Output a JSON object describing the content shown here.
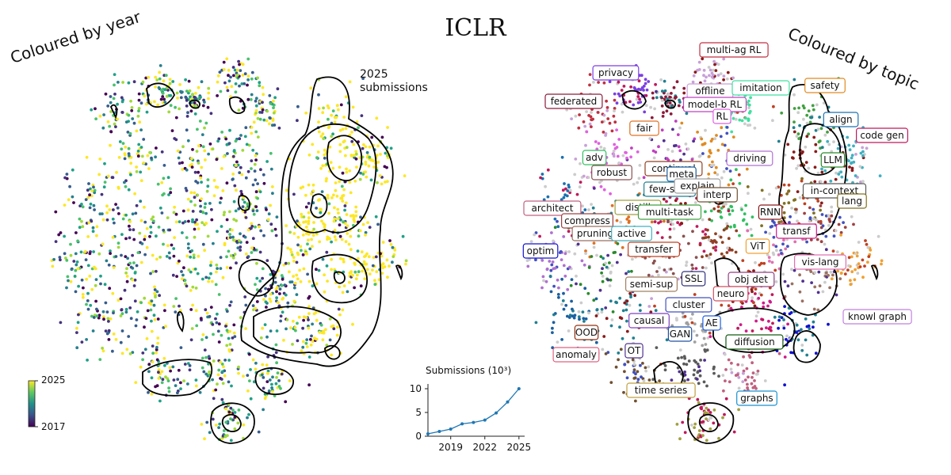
{
  "page": {
    "title": "ICLR",
    "left_title": "Coloured by year",
    "right_title": "Coloured by topic",
    "annotation_line1": "2025",
    "annotation_line2": "submissions"
  },
  "colorbar": {
    "label_top": "2025",
    "label_bottom": "2017",
    "colors": [
      "#440154",
      "#3b528b",
      "#21918c",
      "#5ec962",
      "#fde725"
    ]
  },
  "topics": [
    {
      "label": "multi-ag RL",
      "color": "#c03040"
    },
    {
      "label": "privacy",
      "color": "#7b3fe0"
    },
    {
      "label": "federated",
      "color": "#8b1a3a"
    },
    {
      "label": "offline",
      "color": "#c8a0d8"
    },
    {
      "label": "imitation",
      "color": "#40e0a0"
    },
    {
      "label": "safety",
      "color": "#e08a20"
    },
    {
      "label": "model-b RL",
      "color": "#c040c0"
    },
    {
      "label": "RL",
      "color": "#e060e0"
    },
    {
      "label": "align",
      "color": "#1a70b0"
    },
    {
      "label": "fair",
      "color": "#e07020"
    },
    {
      "label": "code gen",
      "color": "#c0185a"
    },
    {
      "label": "adv",
      "color": "#30c060"
    },
    {
      "label": "driving",
      "color": "#b070d0"
    },
    {
      "label": "LLM",
      "color": "#2a8a2a"
    },
    {
      "label": "robust",
      "color": "#8a5050"
    },
    {
      "label": "continual",
      "color": "#904020"
    },
    {
      "label": "meta",
      "color": "#1a5fa0"
    },
    {
      "label": "few-shot",
      "color": "#208090"
    },
    {
      "label": "explain",
      "color": "#a0a0a0"
    },
    {
      "label": "interp",
      "color": "#705030"
    },
    {
      "label": "in-context",
      "color": "#5a5a5a"
    },
    {
      "label": "architect",
      "color": "#c06080"
    },
    {
      "label": "distill",
      "color": "#a0a040"
    },
    {
      "label": "multi-task",
      "color": "#40a040"
    },
    {
      "label": "RNN",
      "color": "#8a1a1a"
    },
    {
      "label": "lang",
      "color": "#807020"
    },
    {
      "label": "compress",
      "color": "#a04040"
    },
    {
      "label": "pruning",
      "color": "#9a7060"
    },
    {
      "label": "active",
      "color": "#40b0c0"
    },
    {
      "label": "transf",
      "color": "#d01a8a"
    },
    {
      "label": "optim",
      "color": "#1010d0"
    },
    {
      "label": "transfer",
      "color": "#c04020"
    },
    {
      "label": "ViT",
      "color": "#f0a030"
    },
    {
      "label": "vis-lang",
      "color": "#e070b0"
    },
    {
      "label": "semi-sup",
      "color": "#a08060"
    },
    {
      "label": "SSL",
      "color": "#303080"
    },
    {
      "label": "obj det",
      "color": "#904080"
    },
    {
      "label": "neuro",
      "color": "#d05060"
    },
    {
      "label": "cluster",
      "color": "#4050c0"
    },
    {
      "label": "causal",
      "color": "#8040c0"
    },
    {
      "label": "AE",
      "color": "#2060e0"
    },
    {
      "label": "knowl graph",
      "color": "#c080e0"
    },
    {
      "label": "OOD",
      "color": "#903010"
    },
    {
      "label": "GAN",
      "color": "#2050a0"
    },
    {
      "label": "diffusion",
      "color": "#105a10"
    },
    {
      "label": "OT",
      "color": "#503090"
    },
    {
      "label": "anomaly",
      "color": "#e06080"
    },
    {
      "label": "time series",
      "color": "#c0a040"
    },
    {
      "label": "graphs",
      "color": "#1890d0"
    }
  ],
  "chart_data": [
    {
      "type": "scatter",
      "title": "Coloured by year",
      "description_of_colour": "year",
      "colorbar_range": [
        2017,
        2025
      ],
      "annotation": "2025 submissions"
    },
    {
      "type": "scatter",
      "title": "Coloured by topic",
      "description_of_colour": "topic"
    },
    {
      "type": "line",
      "title": "Submissions (10³)",
      "x": [
        2017,
        2018,
        2019,
        2020,
        2021,
        2022,
        2023,
        2024,
        2025
      ],
      "values": [
        0.5,
        1.0,
        1.5,
        2.6,
        2.9,
        3.4,
        4.9,
        7.2,
        10.0
      ],
      "xticks": [
        "2019",
        "2022",
        "2025"
      ],
      "yticks": [
        "0",
        "5",
        "10"
      ],
      "xlim": [
        2017,
        2025.5
      ],
      "ylim": [
        0,
        11
      ],
      "color": "#1f77b4"
    }
  ]
}
